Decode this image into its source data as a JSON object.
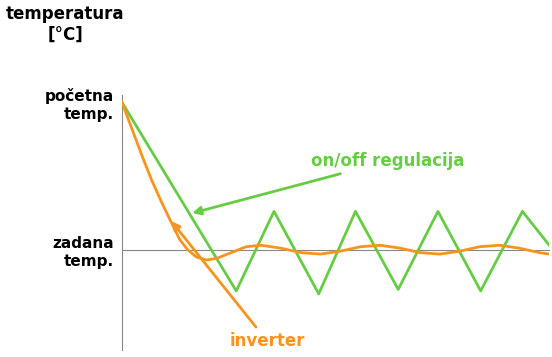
{
  "chart_data": {
    "type": "line",
    "y_label": "temperatura\n[°C]",
    "xlim": [
      0,
      430
    ],
    "ylim": [
      -68,
      105
    ],
    "yticks": [
      {
        "value": 100,
        "label": "početna\ntemp."
      },
      {
        "value": 0,
        "label": "zadana\ntemp."
      }
    ],
    "tick_labels": "y",
    "series": [
      {
        "name": "on/off regulacija",
        "color": "#66cc44",
        "x": [
          0,
          115,
          153,
          198,
          235,
          278,
          318,
          361,
          403,
          430
        ],
        "values": [
          100,
          -28,
          26,
          -30,
          26,
          -27,
          26,
          -28,
          26,
          3
        ]
      },
      {
        "name": "inverter",
        "color": "#f7941d",
        "x": [
          0,
          10,
          20,
          30,
          40,
          50,
          58,
          66,
          75,
          85,
          95,
          110,
          125,
          140,
          160,
          180,
          200,
          220,
          240,
          260,
          280,
          300,
          320,
          340,
          360,
          380,
          400,
          420,
          430
        ],
        "values": [
          100,
          82,
          64,
          47,
          32,
          18,
          7,
          0,
          -5,
          -7,
          -6,
          -2,
          2,
          3,
          1,
          -2,
          -3,
          -1,
          2,
          3,
          1,
          -2,
          -3,
          -1,
          2,
          3,
          1,
          -2,
          -3
        ]
      }
    ]
  }
}
